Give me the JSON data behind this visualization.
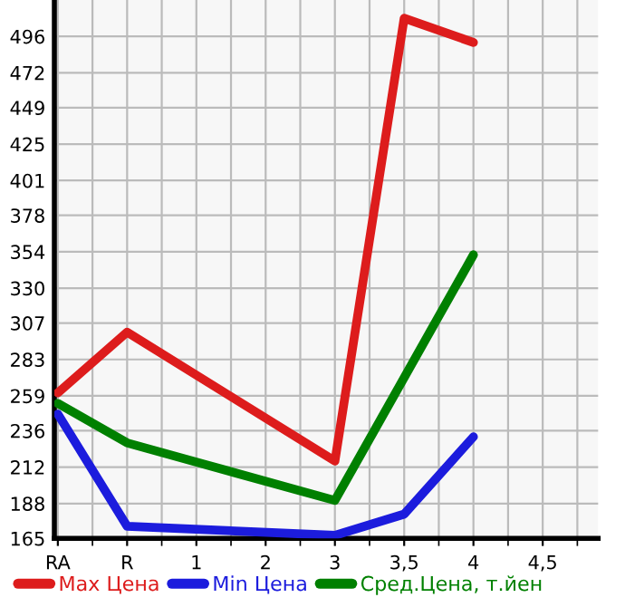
{
  "chart_data": {
    "type": "line",
    "categories": [
      "RA",
      "R",
      "1",
      "2",
      "3",
      "3,5",
      "4",
      "4,5"
    ],
    "series": [
      {
        "name": "Max Цена",
        "color": "#dd1c1c",
        "values": [
          261,
          301,
          null,
          null,
          216,
          508,
          492,
          null
        ]
      },
      {
        "name": "Min Цена",
        "color": "#1c1cdd",
        "values": [
          247,
          173,
          null,
          null,
          167,
          181,
          232,
          null
        ]
      },
      {
        "name": "Сред.Цена, т.йен",
        "color": "#008000",
        "values": [
          254,
          228,
          null,
          null,
          190,
          null,
          352,
          null
        ]
      }
    ],
    "ylim": [
      165,
      520
    ],
    "yticks": [
      165,
      188,
      212,
      236,
      259,
      283,
      307,
      330,
      354,
      378,
      401,
      425,
      449,
      472,
      496
    ],
    "grid": true,
    "legend": "bottom",
    "marker": "none",
    "line_style": "solid"
  }
}
